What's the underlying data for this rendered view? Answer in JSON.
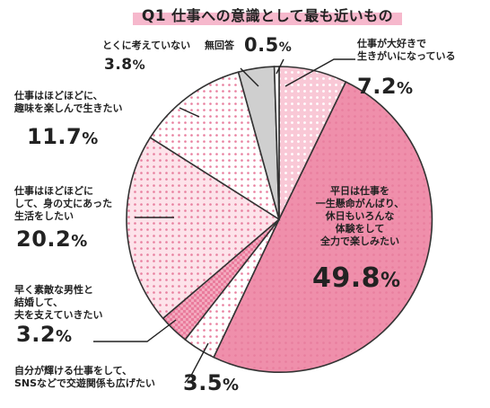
{
  "chart_data": {
    "type": "pie",
    "title_prefix": "Q1",
    "title": "仕事への意識として最も近いもの",
    "unit": "%",
    "slices": [
      {
        "label_lines": [
          "仕事が大好きで",
          "生きがいになっている"
        ],
        "value": 7.2,
        "display": "7.2",
        "color": "#f9c8d6",
        "pattern": "dots-white"
      },
      {
        "label_lines": [
          "平日は仕事を",
          "一生懸命がんばり、",
          "休日もいろんな",
          "体験をして",
          "全力で楽しみたい"
        ],
        "value": 49.8,
        "display": "49.8",
        "color": "#ef8fab",
        "pattern": "dots-pink"
      },
      {
        "label_lines": [
          "自分が輝ける仕事をして、",
          "SNSなどで交遊関係も広げたい"
        ],
        "value": 3.5,
        "display": "3.5",
        "color": "#ffffff",
        "pattern": "dots-pink"
      },
      {
        "label_lines": [
          "早く素敵な男性と",
          "結婚して、",
          "夫を支えていきたい"
        ],
        "value": 3.2,
        "display": "3.2",
        "color": "#ea7c9d",
        "pattern": "check"
      },
      {
        "label_lines": [
          "仕事はほどほどに",
          "して、身の丈にあった",
          "生活をしたい"
        ],
        "value": 20.2,
        "display": "20.2",
        "color": "#fde3ea",
        "pattern": "dots-pink"
      },
      {
        "label_lines": [
          "仕事はほどほどに、",
          "趣味を楽しんで生きたい"
        ],
        "value": 11.7,
        "display": "11.7",
        "color": "#ffffff",
        "pattern": "dots-pink"
      },
      {
        "label_lines": [
          "とくに考えていない"
        ],
        "value": 3.8,
        "display": "3.8",
        "color": "#cfcfcf",
        "pattern": "none"
      },
      {
        "label_lines": [
          "無回答"
        ],
        "value": 0.5,
        "display": "0.5",
        "color": "#ffffff",
        "pattern": "none"
      }
    ]
  }
}
